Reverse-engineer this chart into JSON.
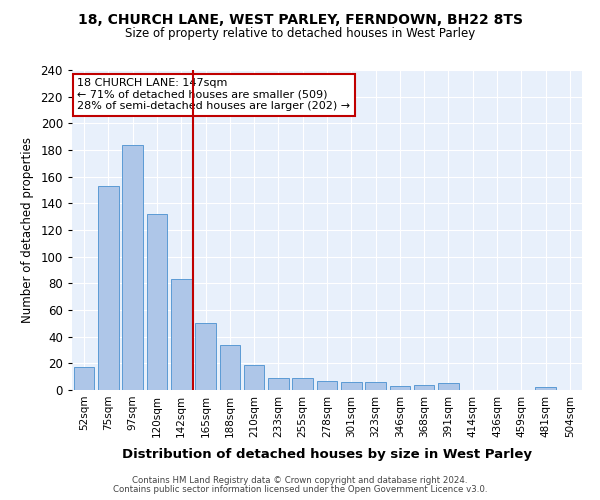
{
  "title": "18, CHURCH LANE, WEST PARLEY, FERNDOWN, BH22 8TS",
  "subtitle": "Size of property relative to detached houses in West Parley",
  "xlabel": "Distribution of detached houses by size in West Parley",
  "ylabel": "Number of detached properties",
  "categories": [
    "52sqm",
    "75sqm",
    "97sqm",
    "120sqm",
    "142sqm",
    "165sqm",
    "188sqm",
    "210sqm",
    "233sqm",
    "255sqm",
    "278sqm",
    "301sqm",
    "323sqm",
    "346sqm",
    "368sqm",
    "391sqm",
    "414sqm",
    "436sqm",
    "459sqm",
    "481sqm",
    "504sqm"
  ],
  "values": [
    17,
    153,
    184,
    132,
    83,
    50,
    34,
    19,
    9,
    9,
    7,
    6,
    6,
    3,
    4,
    5,
    0,
    0,
    0,
    2,
    0
  ],
  "bar_color": "#aec6e8",
  "bar_edge_color": "#5b9bd5",
  "vline_x": 4.5,
  "vline_color": "#c00000",
  "annotation_text": "18 CHURCH LANE: 147sqm\n← 71% of detached houses are smaller (509)\n28% of semi-detached houses are larger (202) →",
  "annotation_box_color": "white",
  "annotation_box_edge_color": "#c00000",
  "ylim": [
    0,
    240
  ],
  "yticks": [
    0,
    20,
    40,
    60,
    80,
    100,
    120,
    140,
    160,
    180,
    200,
    220,
    240
  ],
  "bg_color": "#e8f0fb",
  "grid_color": "white",
  "footer1": "Contains HM Land Registry data © Crown copyright and database right 2024.",
  "footer2": "Contains public sector information licensed under the Open Government Licence v3.0."
}
